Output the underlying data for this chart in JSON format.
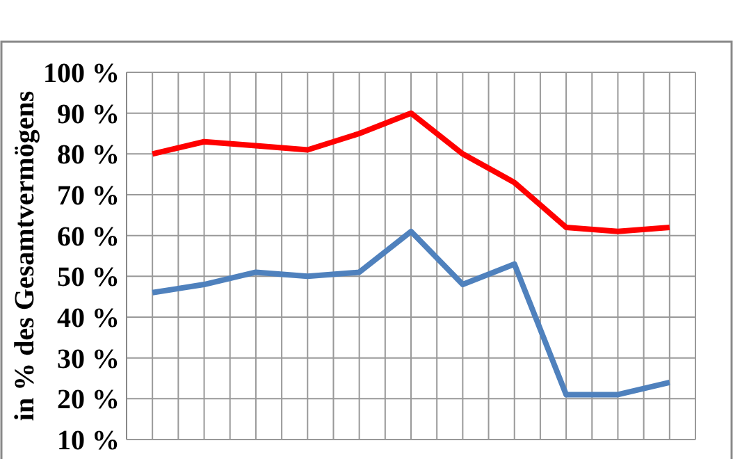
{
  "chart_data": {
    "type": "line",
    "ylabel": "in % des Gesamtvermögens",
    "categories": [
      null,
      null,
      null,
      null,
      null,
      null,
      null,
      null,
      null,
      null,
      null
    ],
    "series": [
      {
        "color": "#ff0000",
        "values": [
          80,
          83,
          82,
          81,
          85,
          90,
          80,
          73,
          62,
          61,
          62
        ]
      },
      {
        "color": "#4f81bd",
        "values": [
          46,
          48,
          51,
          50,
          51,
          61,
          48,
          53,
          21,
          21,
          24
        ]
      }
    ],
    "ylim": [
      10,
      100
    ],
    "yticks": [
      {
        "value": 10,
        "label": "10 %"
      },
      {
        "value": 20,
        "label": "20 %"
      },
      {
        "value": 30,
        "label": "30 %"
      },
      {
        "value": 40,
        "label": "40 %"
      },
      {
        "value": 50,
        "label": "50 %"
      },
      {
        "value": 60,
        "label": "60 %"
      },
      {
        "value": 70,
        "label": "70 %"
      },
      {
        "value": 80,
        "label": "80 %"
      },
      {
        "value": 90,
        "label": "90 %"
      },
      {
        "value": 100,
        "label": "100 %"
      }
    ],
    "grid": true,
    "marker": "none",
    "line_style": "solid"
  }
}
